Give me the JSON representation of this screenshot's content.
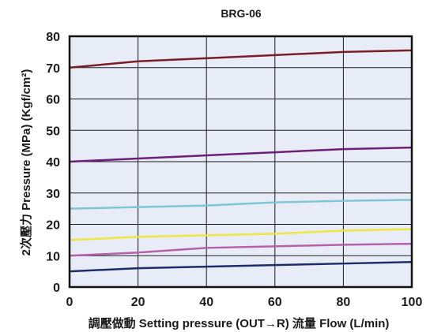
{
  "chart_data": {
    "type": "line",
    "title": "BRG-06",
    "xlabel": "調壓做動 Setting pressure (OUT→R)  流量  Flow (L/min)",
    "ylabel": "2次壓力  Pressure (MPa) (Kgf/cm²)",
    "xlim": [
      0,
      100
    ],
    "ylim": [
      0,
      80
    ],
    "x_ticks": [
      0,
      20,
      40,
      60,
      80,
      100
    ],
    "y_ticks": [
      0,
      10,
      20,
      30,
      40,
      50,
      60,
      70,
      80
    ],
    "x_tick_labels": [
      "0",
      "20",
      "40",
      "60",
      "80",
      "100"
    ],
    "y_tick_labels": [
      "0",
      "10",
      "20",
      "30",
      "40",
      "50",
      "60",
      "70",
      "80"
    ],
    "grid": true,
    "legend": "none",
    "background_color": "#e7ecf7",
    "series": [
      {
        "color": "#7a1d24",
        "x": [
          0,
          20,
          40,
          60,
          80,
          100
        ],
        "y": [
          70,
          72,
          73,
          74,
          75,
          75.5
        ]
      },
      {
        "color": "#6e1f78",
        "x": [
          0,
          20,
          40,
          60,
          80,
          100
        ],
        "y": [
          40,
          41,
          42,
          43,
          44,
          44.5
        ]
      },
      {
        "color": "#7cc6d6",
        "x": [
          0,
          20,
          40,
          60,
          80,
          100
        ],
        "y": [
          25,
          25.5,
          26,
          27,
          27.5,
          27.8
        ]
      },
      {
        "color": "#f0e640",
        "x": [
          0,
          20,
          40,
          60,
          80,
          100
        ],
        "y": [
          15,
          16,
          16.5,
          17,
          18,
          18.5
        ]
      },
      {
        "color": "#b560ad",
        "x": [
          0,
          20,
          40,
          60,
          80,
          100
        ],
        "y": [
          10,
          11,
          12.5,
          13,
          13.5,
          13.8
        ]
      },
      {
        "color": "#1e2c6a",
        "x": [
          0,
          20,
          40,
          60,
          80,
          100
        ],
        "y": [
          5,
          6,
          6.5,
          7,
          7.5,
          8
        ]
      }
    ]
  }
}
